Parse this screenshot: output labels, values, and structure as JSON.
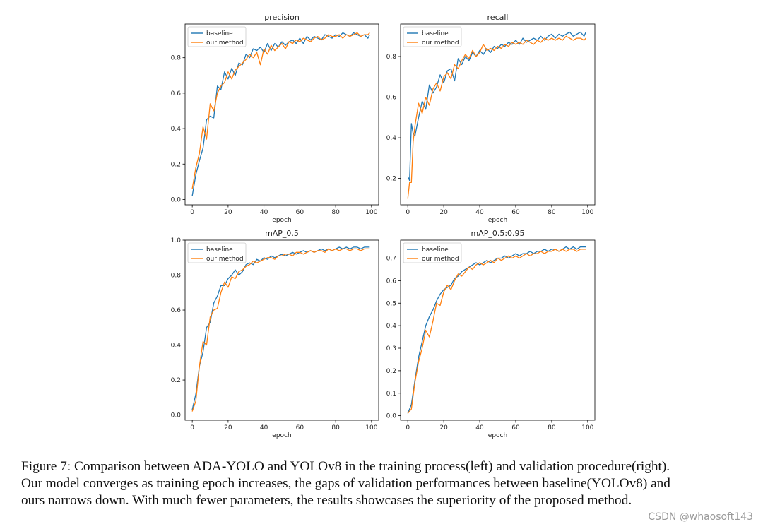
{
  "chart_data": [
    {
      "type": "line",
      "title": "precision",
      "xlabel": "epoch",
      "ylabel": "",
      "xlim": [
        -4,
        104
      ],
      "ylim": [
        -0.03,
        0.99
      ],
      "xticks": [
        0,
        20,
        40,
        60,
        80,
        100
      ],
      "yticks": [
        0.0,
        0.2,
        0.4,
        0.6,
        0.8
      ],
      "ytick_labels": [
        "0.0",
        "0.2",
        "0.4",
        "0.6",
        "0.8"
      ],
      "legend": "top-left",
      "series": [
        {
          "name": "baseline",
          "color": "#1f77b4",
          "x": [
            0,
            2,
            4,
            6,
            8,
            10,
            12,
            14,
            16,
            18,
            20,
            22,
            24,
            26,
            28,
            30,
            32,
            34,
            36,
            38,
            40,
            42,
            44,
            46,
            48,
            50,
            52,
            54,
            56,
            58,
            60,
            62,
            64,
            66,
            68,
            70,
            72,
            74,
            76,
            78,
            80,
            82,
            84,
            86,
            88,
            90,
            92,
            94,
            96,
            98,
            99
          ],
          "values": [
            0.02,
            0.14,
            0.22,
            0.29,
            0.45,
            0.47,
            0.46,
            0.64,
            0.62,
            0.72,
            0.68,
            0.74,
            0.7,
            0.77,
            0.76,
            0.82,
            0.8,
            0.85,
            0.84,
            0.86,
            0.83,
            0.88,
            0.84,
            0.88,
            0.86,
            0.89,
            0.87,
            0.89,
            0.9,
            0.88,
            0.91,
            0.88,
            0.92,
            0.9,
            0.92,
            0.91,
            0.9,
            0.93,
            0.92,
            0.91,
            0.93,
            0.92,
            0.94,
            0.93,
            0.92,
            0.94,
            0.93,
            0.92,
            0.93,
            0.91,
            0.93
          ]
        },
        {
          "name": "our method",
          "color": "#ff7f0e",
          "x": [
            0,
            2,
            4,
            6,
            8,
            10,
            12,
            14,
            16,
            18,
            20,
            22,
            24,
            26,
            28,
            30,
            32,
            34,
            36,
            38,
            40,
            42,
            44,
            46,
            48,
            50,
            52,
            54,
            56,
            58,
            60,
            62,
            64,
            66,
            68,
            70,
            72,
            74,
            76,
            78,
            80,
            82,
            84,
            86,
            88,
            90,
            92,
            94,
            96,
            98,
            99
          ],
          "values": [
            0.06,
            0.18,
            0.26,
            0.41,
            0.34,
            0.54,
            0.5,
            0.6,
            0.64,
            0.66,
            0.72,
            0.68,
            0.73,
            0.75,
            0.77,
            0.79,
            0.82,
            0.8,
            0.83,
            0.76,
            0.85,
            0.82,
            0.87,
            0.84,
            0.86,
            0.88,
            0.85,
            0.89,
            0.88,
            0.9,
            0.89,
            0.91,
            0.9,
            0.89,
            0.91,
            0.92,
            0.9,
            0.91,
            0.93,
            0.92,
            0.92,
            0.93,
            0.91,
            0.93,
            0.92,
            0.93,
            0.94,
            0.92,
            0.93,
            0.93,
            0.94
          ]
        }
      ]
    },
    {
      "type": "line",
      "title": "recall",
      "xlabel": "epoch",
      "ylabel": "",
      "xlim": [
        -4,
        104
      ],
      "ylim": [
        0.07,
        0.96
      ],
      "xticks": [
        0,
        20,
        40,
        60,
        80,
        100
      ],
      "yticks": [
        0.2,
        0.4,
        0.6,
        0.8
      ],
      "ytick_labels": [
        "0.2",
        "0.4",
        "0.6",
        "0.8"
      ],
      "legend": "top-left",
      "series": [
        {
          "name": "baseline",
          "color": "#1f77b4",
          "x": [
            0,
            1,
            2,
            3,
            4,
            6,
            8,
            10,
            12,
            14,
            16,
            18,
            20,
            22,
            24,
            26,
            28,
            30,
            32,
            34,
            36,
            38,
            40,
            42,
            44,
            46,
            48,
            50,
            52,
            54,
            56,
            58,
            60,
            62,
            64,
            66,
            68,
            70,
            72,
            74,
            76,
            78,
            80,
            82,
            84,
            86,
            88,
            90,
            92,
            94,
            96,
            98,
            99
          ],
          "values": [
            0.21,
            0.19,
            0.47,
            0.42,
            0.41,
            0.5,
            0.58,
            0.54,
            0.66,
            0.62,
            0.65,
            0.71,
            0.67,
            0.73,
            0.74,
            0.68,
            0.79,
            0.76,
            0.8,
            0.78,
            0.82,
            0.8,
            0.83,
            0.81,
            0.84,
            0.82,
            0.85,
            0.84,
            0.86,
            0.85,
            0.87,
            0.86,
            0.88,
            0.86,
            0.89,
            0.87,
            0.88,
            0.89,
            0.88,
            0.9,
            0.88,
            0.9,
            0.91,
            0.89,
            0.91,
            0.9,
            0.91,
            0.92,
            0.9,
            0.91,
            0.92,
            0.9,
            0.92
          ]
        },
        {
          "name": "our method",
          "color": "#ff7f0e",
          "x": [
            0,
            1,
            2,
            3,
            4,
            6,
            8,
            10,
            12,
            14,
            16,
            18,
            20,
            22,
            24,
            26,
            28,
            30,
            32,
            34,
            36,
            38,
            40,
            42,
            44,
            46,
            48,
            50,
            52,
            54,
            56,
            58,
            60,
            62,
            64,
            66,
            68,
            70,
            72,
            74,
            76,
            78,
            80,
            82,
            84,
            86,
            88,
            90,
            92,
            94,
            96,
            98,
            99
          ],
          "values": [
            0.1,
            0.18,
            0.18,
            0.38,
            0.46,
            0.57,
            0.52,
            0.6,
            0.56,
            0.64,
            0.67,
            0.63,
            0.7,
            0.72,
            0.69,
            0.76,
            0.74,
            0.78,
            0.81,
            0.79,
            0.83,
            0.8,
            0.82,
            0.86,
            0.83,
            0.84,
            0.83,
            0.85,
            0.84,
            0.86,
            0.85,
            0.87,
            0.86,
            0.87,
            0.86,
            0.88,
            0.87,
            0.86,
            0.88,
            0.87,
            0.89,
            0.88,
            0.89,
            0.88,
            0.89,
            0.88,
            0.9,
            0.89,
            0.88,
            0.89,
            0.89,
            0.88,
            0.89
          ]
        }
      ]
    },
    {
      "type": "line",
      "title": "mAP_0.5",
      "xlabel": "epoch",
      "ylabel": "",
      "xlim": [
        -4,
        104
      ],
      "ylim": [
        -0.03,
        1.0
      ],
      "xticks": [
        0,
        20,
        40,
        60,
        80,
        100
      ],
      "yticks": [
        0.0,
        0.2,
        0.4,
        0.6,
        0.8,
        1.0
      ],
      "ytick_labels": [
        "0.0",
        "0.2",
        "0.4",
        "0.6",
        "0.8",
        "1.0"
      ],
      "legend": "top-left",
      "series": [
        {
          "name": "baseline",
          "color": "#1f77b4",
          "x": [
            0,
            2,
            4,
            6,
            8,
            10,
            12,
            14,
            16,
            18,
            20,
            22,
            24,
            26,
            28,
            30,
            32,
            34,
            36,
            38,
            40,
            42,
            44,
            46,
            48,
            50,
            52,
            54,
            56,
            58,
            60,
            62,
            64,
            66,
            68,
            70,
            72,
            74,
            76,
            78,
            80,
            82,
            84,
            86,
            88,
            90,
            92,
            94,
            96,
            98,
            99
          ],
          "values": [
            0.03,
            0.12,
            0.28,
            0.36,
            0.5,
            0.53,
            0.64,
            0.68,
            0.74,
            0.74,
            0.78,
            0.8,
            0.83,
            0.8,
            0.82,
            0.86,
            0.87,
            0.86,
            0.89,
            0.88,
            0.9,
            0.89,
            0.91,
            0.9,
            0.91,
            0.92,
            0.91,
            0.92,
            0.93,
            0.92,
            0.93,
            0.94,
            0.93,
            0.94,
            0.93,
            0.94,
            0.95,
            0.94,
            0.95,
            0.94,
            0.95,
            0.96,
            0.95,
            0.96,
            0.95,
            0.96,
            0.96,
            0.95,
            0.96,
            0.96,
            0.96
          ]
        },
        {
          "name": "our method",
          "color": "#ff7f0e",
          "x": [
            0,
            2,
            4,
            6,
            8,
            10,
            12,
            14,
            16,
            18,
            20,
            22,
            24,
            26,
            28,
            30,
            32,
            34,
            36,
            38,
            40,
            42,
            44,
            46,
            48,
            50,
            52,
            54,
            56,
            58,
            60,
            62,
            64,
            66,
            68,
            70,
            72,
            74,
            76,
            78,
            80,
            82,
            84,
            86,
            88,
            90,
            92,
            94,
            96,
            98,
            99
          ],
          "values": [
            0.02,
            0.08,
            0.28,
            0.42,
            0.4,
            0.56,
            0.6,
            0.61,
            0.7,
            0.76,
            0.73,
            0.79,
            0.78,
            0.82,
            0.83,
            0.85,
            0.86,
            0.88,
            0.87,
            0.88,
            0.89,
            0.9,
            0.9,
            0.89,
            0.91,
            0.91,
            0.92,
            0.92,
            0.91,
            0.93,
            0.93,
            0.92,
            0.93,
            0.94,
            0.93,
            0.94,
            0.94,
            0.93,
            0.95,
            0.94,
            0.95,
            0.94,
            0.95,
            0.95,
            0.94,
            0.95,
            0.95,
            0.94,
            0.95,
            0.95,
            0.95
          ]
        }
      ]
    },
    {
      "type": "line",
      "title": "mAP_0.5:0.95",
      "xlabel": "epoch",
      "ylabel": "",
      "xlim": [
        -4,
        104
      ],
      "ylim": [
        -0.02,
        0.78
      ],
      "xticks": [
        0,
        20,
        40,
        60,
        80,
        100
      ],
      "yticks": [
        0.0,
        0.1,
        0.2,
        0.3,
        0.4,
        0.5,
        0.6,
        0.7
      ],
      "ytick_labels": [
        "0.0",
        "0.1",
        "0.2",
        "0.3",
        "0.4",
        "0.5",
        "0.6",
        "0.7"
      ],
      "legend": "top-left",
      "series": [
        {
          "name": "baseline",
          "color": "#1f77b4",
          "x": [
            0,
            2,
            4,
            6,
            8,
            10,
            12,
            14,
            16,
            18,
            20,
            22,
            24,
            26,
            28,
            30,
            32,
            34,
            36,
            38,
            40,
            42,
            44,
            46,
            48,
            50,
            52,
            54,
            56,
            58,
            60,
            62,
            64,
            66,
            68,
            70,
            72,
            74,
            76,
            78,
            80,
            82,
            84,
            86,
            88,
            90,
            92,
            94,
            96,
            98,
            99
          ],
          "values": [
            0.01,
            0.05,
            0.16,
            0.26,
            0.33,
            0.4,
            0.44,
            0.47,
            0.51,
            0.54,
            0.56,
            0.57,
            0.58,
            0.61,
            0.62,
            0.64,
            0.65,
            0.66,
            0.67,
            0.68,
            0.67,
            0.68,
            0.69,
            0.68,
            0.69,
            0.7,
            0.7,
            0.71,
            0.7,
            0.71,
            0.72,
            0.71,
            0.72,
            0.72,
            0.73,
            0.72,
            0.73,
            0.73,
            0.74,
            0.73,
            0.74,
            0.74,
            0.73,
            0.74,
            0.75,
            0.74,
            0.75,
            0.74,
            0.75,
            0.75,
            0.75
          ]
        },
        {
          "name": "our method",
          "color": "#ff7f0e",
          "x": [
            0,
            2,
            4,
            6,
            8,
            10,
            12,
            14,
            16,
            18,
            20,
            22,
            24,
            26,
            28,
            30,
            32,
            34,
            36,
            38,
            40,
            42,
            44,
            46,
            48,
            50,
            52,
            54,
            56,
            58,
            60,
            62,
            64,
            66,
            68,
            70,
            72,
            74,
            76,
            78,
            80,
            82,
            84,
            86,
            88,
            90,
            92,
            94,
            96,
            98,
            99
          ],
          "values": [
            0.01,
            0.03,
            0.15,
            0.24,
            0.3,
            0.38,
            0.35,
            0.42,
            0.5,
            0.49,
            0.55,
            0.58,
            0.56,
            0.6,
            0.63,
            0.62,
            0.64,
            0.66,
            0.65,
            0.67,
            0.68,
            0.67,
            0.68,
            0.69,
            0.68,
            0.7,
            0.69,
            0.7,
            0.71,
            0.7,
            0.71,
            0.7,
            0.71,
            0.72,
            0.71,
            0.72,
            0.72,
            0.73,
            0.72,
            0.73,
            0.73,
            0.74,
            0.73,
            0.74,
            0.73,
            0.74,
            0.74,
            0.73,
            0.74,
            0.74,
            0.74
          ]
        }
      ]
    }
  ],
  "caption": {
    "lines": [
      "Figure 7: Comparison between ADA-YOLO and YOLOv8 in the training process(left) and validation procedure(right).",
      "Our model converges as training epoch increases, the gaps of validation performances between baseline(YOLOv8) and",
      "ours narrows down. With much fewer parameters, the results showcases the superiority of the proposed method."
    ]
  },
  "watermark": "CSDN @whaosoft143"
}
